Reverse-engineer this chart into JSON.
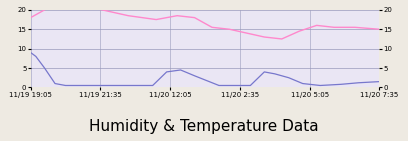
{
  "title": "Humidity & Temperature Data",
  "bg_outer": "#eeeae2",
  "bg_plot": "#eae6f4",
  "border_color": "#b8a050",
  "grid_color": "#9999bb",
  "ylim": [
    0,
    20
  ],
  "yticks": [
    0,
    5,
    10,
    15,
    20
  ],
  "xtick_labels": [
    "11/19 19:05",
    "11/19 21:35",
    "11/20 12:05",
    "11/20 2:35",
    "11/20 5:05",
    "11/20 7:35"
  ],
  "temp_color": "#ff88cc",
  "hum_color": "#7777cc",
  "title_fontsize": 11,
  "tick_fontsize": 5.0,
  "temp_data_x": [
    0.0,
    0.02,
    0.06,
    0.1,
    0.18,
    0.28,
    0.36,
    0.42,
    0.47,
    0.52,
    0.57,
    0.62,
    0.67,
    0.72,
    0.77,
    0.82,
    0.87,
    0.93,
    1.0
  ],
  "temp_data_y": [
    18,
    19,
    21,
    21,
    20.5,
    18.5,
    17.5,
    18.5,
    18,
    15.5,
    15,
    14,
    13,
    12.5,
    14.5,
    16,
    15.5,
    15.5,
    15
  ],
  "hum_data_x": [
    0.0,
    0.015,
    0.04,
    0.07,
    0.1,
    0.18,
    0.28,
    0.35,
    0.39,
    0.43,
    0.47,
    0.54,
    0.6,
    0.63,
    0.67,
    0.7,
    0.74,
    0.78,
    0.83,
    0.89,
    0.94,
    1.0
  ],
  "hum_data_y": [
    9,
    8,
    5,
    1,
    0.5,
    0.5,
    0.5,
    0.5,
    4,
    4.5,
    3,
    0.5,
    0.5,
    0.5,
    4,
    3.5,
    2.5,
    1,
    0.5,
    0.8,
    1.2,
    1.5
  ]
}
